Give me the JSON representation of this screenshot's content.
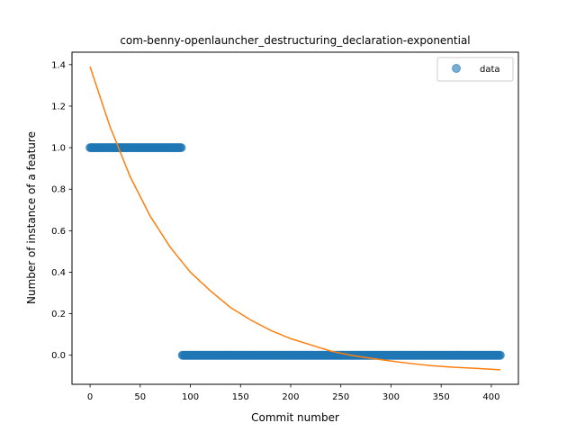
{
  "chart_data": {
    "type": "scatter",
    "title": "com-benny-openlauncher_destructuring_declaration-exponential",
    "xlabel": "Commit number",
    "ylabel": "Number of instance of a feature",
    "xlim": [
      -18,
      427
    ],
    "ylim": [
      -0.14,
      1.46
    ],
    "xticks": [
      0,
      50,
      100,
      150,
      200,
      250,
      300,
      350,
      400
    ],
    "yticks": [
      0.0,
      0.2,
      0.4,
      0.6,
      0.8,
      1.0,
      1.2,
      1.4
    ],
    "ytick_labels": [
      "0.0",
      "0.2",
      "0.4",
      "0.6",
      "0.8",
      "1.0",
      "1.2",
      "1.4"
    ],
    "grid": false,
    "legend": {
      "placement": "top-right",
      "entries": [
        "data"
      ]
    },
    "series": [
      {
        "name": "data",
        "kind": "points",
        "color": "#1f77b4",
        "segments": [
          {
            "x_start": 0,
            "x_end": 91,
            "y": 1.0
          },
          {
            "x_start": 92,
            "x_end": 409,
            "y": 0.0
          }
        ]
      },
      {
        "kind": "line",
        "color": "#ff7f0e",
        "x": [
          0,
          20,
          40,
          60,
          80,
          100,
          120,
          140,
          160,
          180,
          200,
          220,
          240,
          260,
          280,
          300,
          320,
          340,
          360,
          380,
          409
        ],
        "y": [
          1.39,
          1.1,
          0.86,
          0.67,
          0.52,
          0.4,
          0.31,
          0.23,
          0.17,
          0.12,
          0.08,
          0.05,
          0.02,
          0.0,
          -0.015,
          -0.028,
          -0.04,
          -0.05,
          -0.057,
          -0.062,
          -0.07
        ]
      }
    ]
  }
}
